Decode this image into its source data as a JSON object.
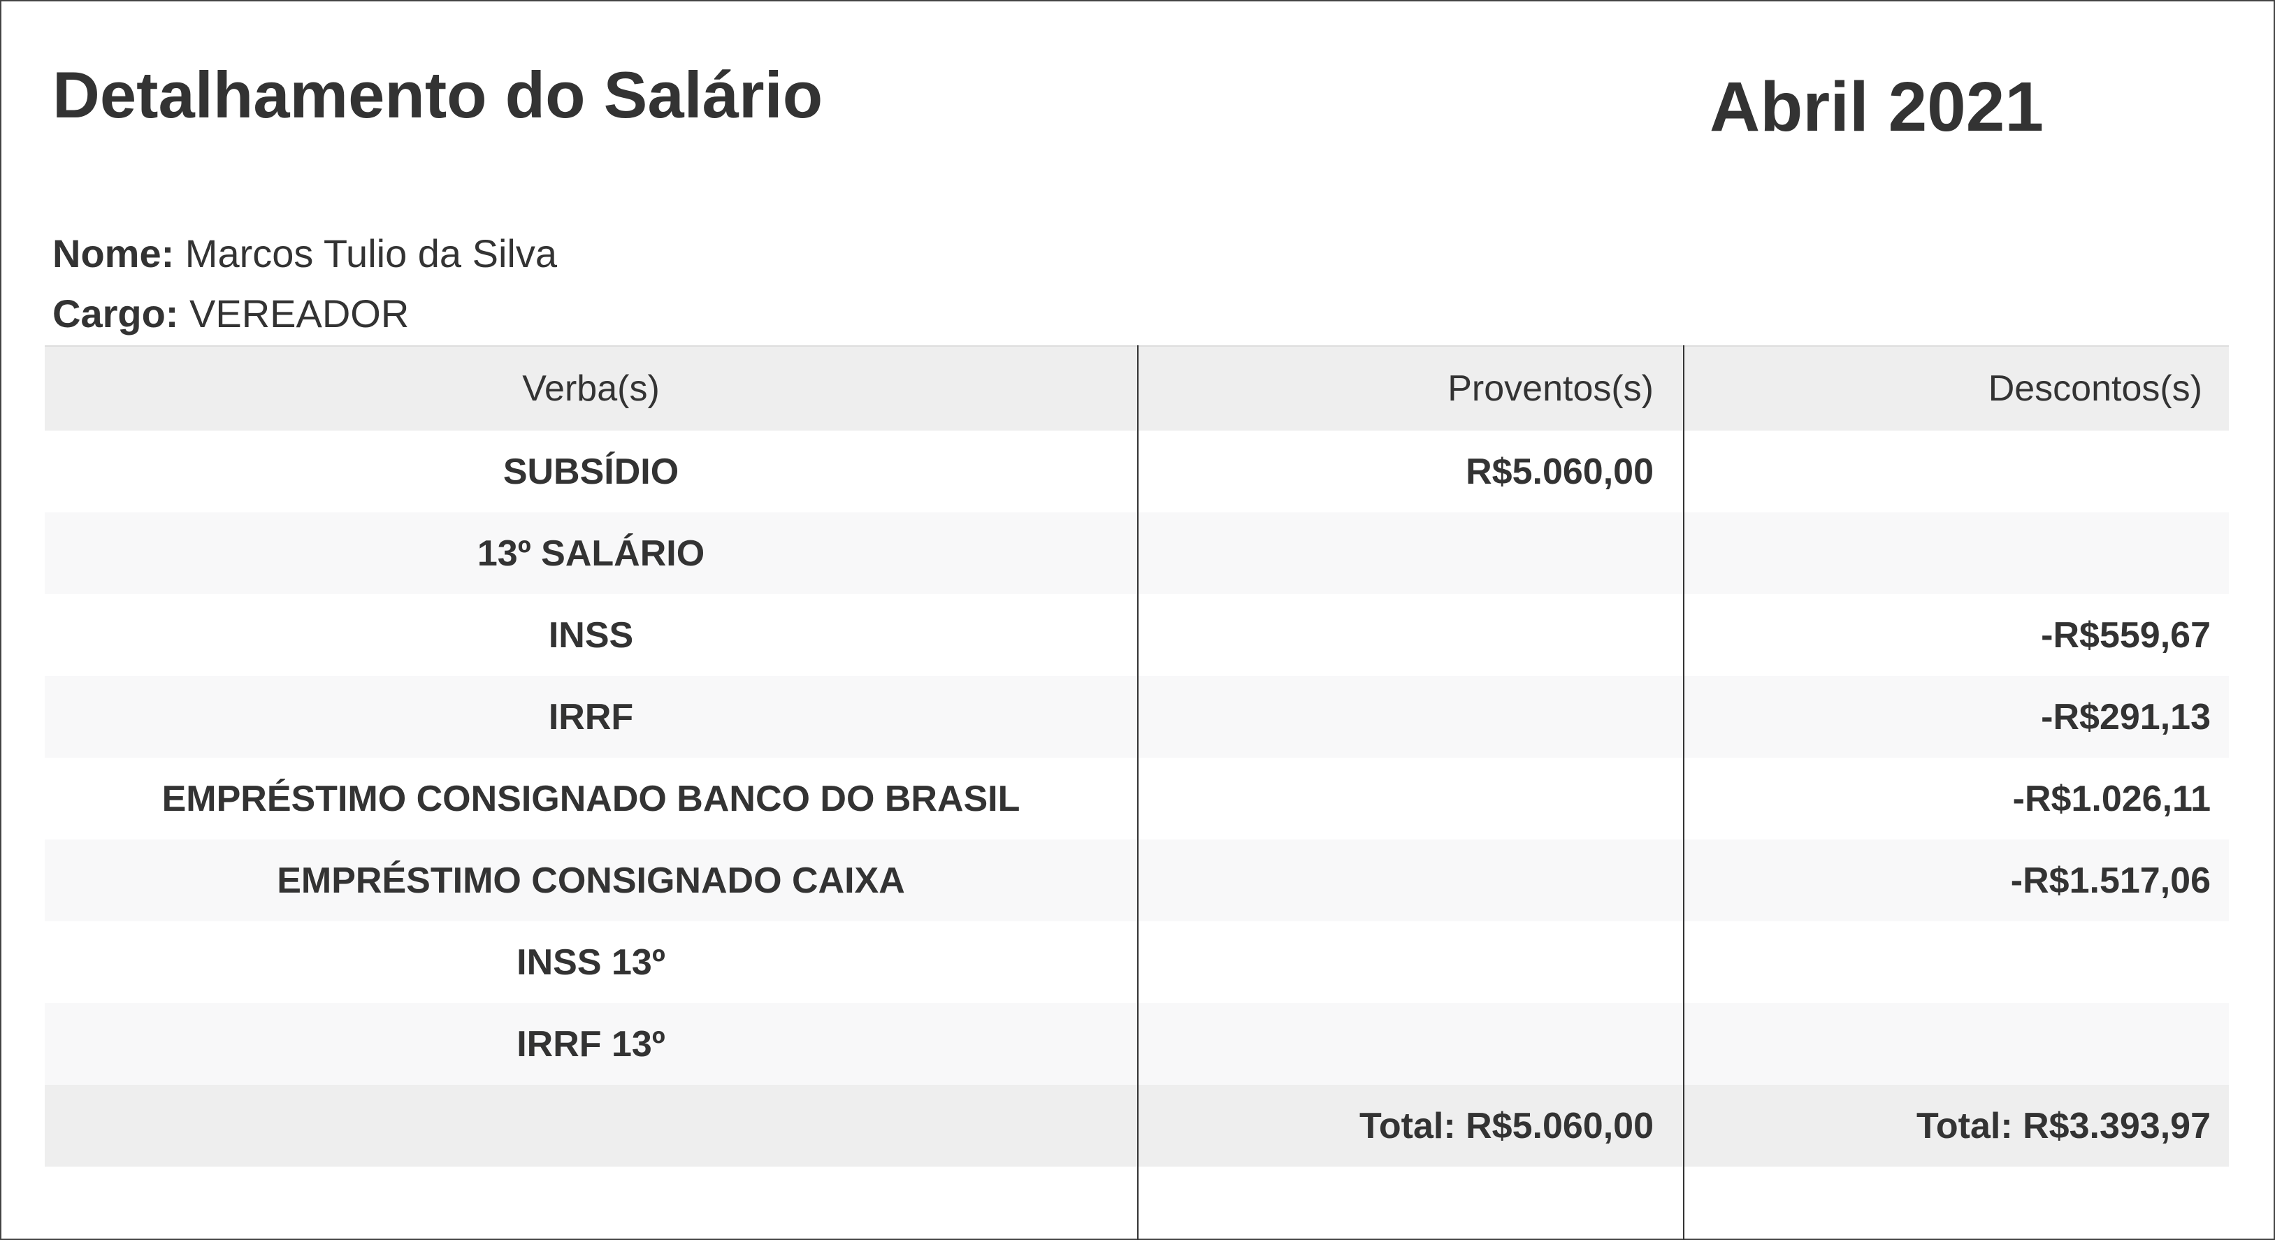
{
  "header": {
    "title": "Detalhamento do Salário",
    "period": "Abril 2021"
  },
  "employee": {
    "name_label": "Nome:",
    "name": "Marcos Tulio da Silva",
    "role_label": "Cargo:",
    "role": "VEREADOR"
  },
  "table": {
    "columns": [
      "Verba(s)",
      "Proventos(s)",
      "Descontos(s)"
    ],
    "rows": [
      {
        "verba": "SUBSÍDIO",
        "proventos": "R$5.060,00",
        "descontos": ""
      },
      {
        "verba": "13º SALÁRIO",
        "proventos": "",
        "descontos": ""
      },
      {
        "verba": "INSS",
        "proventos": "",
        "descontos": "-R$559,67"
      },
      {
        "verba": "IRRF",
        "proventos": "",
        "descontos": "-R$291,13"
      },
      {
        "verba": "EMPRÉSTIMO CONSIGNADO BANCO DO BRASIL",
        "proventos": "",
        "descontos": "-R$1.026,11"
      },
      {
        "verba": "EMPRÉSTIMO CONSIGNADO CAIXA",
        "proventos": "",
        "descontos": "-R$1.517,06"
      },
      {
        "verba": "INSS 13º",
        "proventos": "",
        "descontos": ""
      },
      {
        "verba": "IRRF 13º",
        "proventos": "",
        "descontos": ""
      }
    ],
    "totals": {
      "proventos": "Total: R$5.060,00",
      "descontos": "Total: R$3.393,97"
    }
  }
}
